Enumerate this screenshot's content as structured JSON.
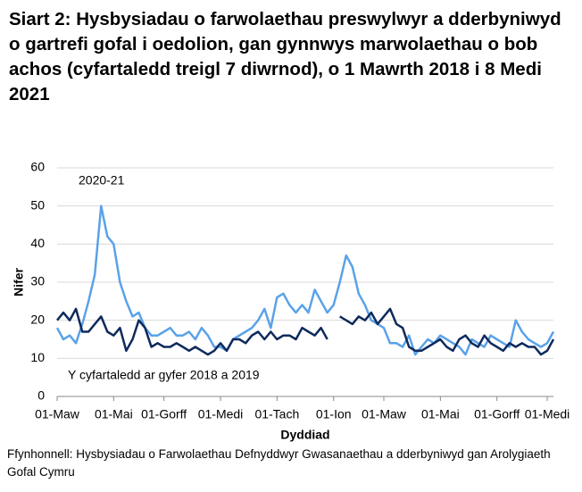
{
  "chart_data": {
    "type": "line",
    "title": "Siart 2: Hysbysiadau o farwolaethau preswylwyr a dderbyniwyd o gartrefi gofal i oedolion, gan gynnwys marwolaethau o bob achos (cyfartaledd treigl 7 diwrnod), o 1 Mawrth 2018 i 8 Medi 2021",
    "x_label": "Dyddiad",
    "y_label": "Nifer",
    "source": "Ffynhonnell: Hysbysiadau o Farwolaethau Defnyddwyr Gwasanaethau a dderbyniwyd gan Arolygiaeth Gofal Cymru",
    "categories": [
      "01-Maw",
      null,
      null,
      null,
      null,
      null,
      null,
      null,
      null,
      "01-Mai",
      null,
      null,
      null,
      null,
      null,
      null,
      null,
      "01-Gorff",
      null,
      null,
      null,
      null,
      null,
      null,
      null,
      null,
      "01-Medi",
      null,
      null,
      null,
      null,
      null,
      null,
      null,
      null,
      "01-Tach",
      null,
      null,
      null,
      null,
      null,
      null,
      null,
      null,
      "01-Ion",
      null,
      null,
      null,
      null,
      null,
      null,
      null,
      "01-Maw",
      null,
      null,
      null,
      null,
      null,
      null,
      null,
      null,
      "01-Mai",
      null,
      null,
      null,
      null,
      null,
      null,
      null,
      null,
      "01-Gorff",
      null,
      null,
      null,
      null,
      null,
      null,
      null,
      "01-Medi",
      null
    ],
    "series": [
      {
        "name": "2020-21",
        "color": "#5aa2e8",
        "values": [
          18,
          15,
          16,
          14,
          19,
          25,
          32,
          50,
          42,
          40,
          30,
          25,
          21,
          22,
          18,
          16,
          16,
          17,
          18,
          16,
          16,
          17,
          15,
          18,
          16,
          13,
          13,
          12,
          15,
          16,
          17,
          18,
          20,
          23,
          18,
          26,
          27,
          24,
          22,
          24,
          22,
          28,
          25,
          22,
          24,
          30,
          37,
          34,
          27,
          24,
          20,
          19,
          18,
          14,
          14,
          13,
          16,
          11,
          13,
          15,
          14,
          16,
          15,
          14,
          13,
          11,
          15,
          14,
          13,
          16,
          15,
          14,
          13,
          20,
          17,
          15,
          14,
          13,
          14,
          17
        ]
      },
      {
        "name": "Y cyfartaledd ar gyfer 2018 a 2019",
        "color": "#0f2a5c",
        "values": [
          20,
          22,
          20,
          23,
          17,
          17,
          19,
          21,
          17,
          16,
          18,
          12,
          15,
          20,
          18,
          13,
          14,
          13,
          13,
          14,
          13,
          12,
          13,
          12,
          11,
          12,
          14,
          12,
          15,
          15,
          14,
          16,
          17,
          15,
          17,
          15,
          16,
          16,
          15,
          18,
          17,
          16,
          18,
          15,
          null,
          21,
          20,
          19,
          21,
          20,
          22,
          19,
          21,
          23,
          19,
          18,
          13,
          12,
          12,
          13,
          14,
          15,
          13,
          12,
          15,
          16,
          14,
          13,
          16,
          14,
          13,
          12,
          14,
          13,
          14,
          13,
          13,
          11,
          12,
          15
        ]
      }
    ],
    "ylim": [
      0,
      60
    ],
    "yticks": [
      0,
      10,
      20,
      30,
      40,
      50,
      60
    ],
    "grid": true
  }
}
